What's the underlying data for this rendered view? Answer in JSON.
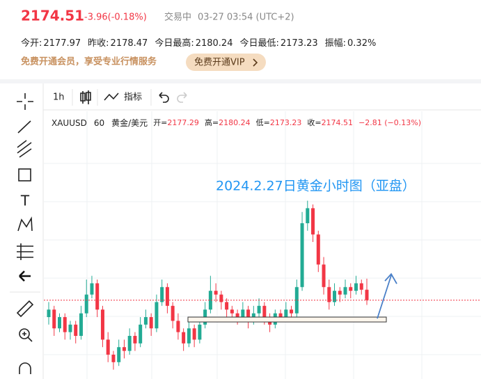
{
  "header": {
    "price": "2174.51",
    "change": "-3.96(-0.18%)",
    "status": "交易中",
    "time": "03-27 03:54 (UTC+2)"
  },
  "stats": [
    {
      "label": "今开:",
      "value": "2177.97"
    },
    {
      "label": "昨收:",
      "value": "2178.47"
    },
    {
      "label": "今日最高:",
      "value": "2180.24"
    },
    {
      "label": "今日最低:",
      "value": "2173.23"
    },
    {
      "label": "振幅:",
      "value": "0.32%"
    }
  ],
  "promo": {
    "text": "免费开通会员，享受专业行情服务",
    "button": "免费开通VIP"
  },
  "toolbar": {
    "interval": "1h",
    "indicators": "指标"
  },
  "legend": {
    "symbol": "XAUUSD",
    "interval": "60",
    "name": "黄金/美元",
    "items": [
      {
        "label": "开=",
        "value": "2177.29"
      },
      {
        "label": "高=",
        "value": "2180.24"
      },
      {
        "label": "低=",
        "value": "2173.23"
      },
      {
        "label": "收=",
        "value": "2174.51"
      }
    ],
    "change": "−2.81 (−0.13%)"
  },
  "chart_data": {
    "type": "candlestick",
    "title": "2024.2.27日黄金小时图（亚盘）",
    "up_color": "#22ab94",
    "down_color": "#f23645",
    "ylim": [
      2155,
      2215
    ],
    "ohlc": [
      [
        2170,
        2174,
        2168,
        2172
      ],
      [
        2172,
        2173,
        2165,
        2167
      ],
      [
        2167,
        2171,
        2166,
        2170
      ],
      [
        2170,
        2171,
        2164,
        2166
      ],
      [
        2166,
        2169,
        2164,
        2168
      ],
      [
        2168,
        2169,
        2163,
        2165
      ],
      [
        2165,
        2173,
        2164,
        2171
      ],
      [
        2171,
        2180,
        2170,
        2176
      ],
      [
        2176,
        2181,
        2175,
        2179
      ],
      [
        2179,
        2180,
        2170,
        2172
      ],
      [
        2172,
        2173,
        2162,
        2164
      ],
      [
        2164,
        2166,
        2158,
        2160
      ],
      [
        2160,
        2161,
        2156,
        2158
      ],
      [
        2158,
        2164,
        2157,
        2162
      ],
      [
        2162,
        2164,
        2159,
        2161
      ],
      [
        2161,
        2167,
        2160,
        2165
      ],
      [
        2165,
        2166,
        2161,
        2163
      ],
      [
        2163,
        2170,
        2162,
        2168
      ],
      [
        2168,
        2172,
        2167,
        2170
      ],
      [
        2170,
        2171,
        2165,
        2167
      ],
      [
        2167,
        2176,
        2166,
        2174
      ],
      [
        2174,
        2180,
        2173,
        2178
      ],
      [
        2178,
        2179,
        2171,
        2173
      ],
      [
        2173,
        2174,
        2167,
        2169
      ],
      [
        2169,
        2171,
        2164,
        2166
      ],
      [
        2166,
        2167,
        2161,
        2163
      ],
      [
        2163,
        2169,
        2162,
        2167
      ],
      [
        2167,
        2168,
        2162,
        2164
      ],
      [
        2164,
        2170,
        2163,
        2168
      ],
      [
        2168,
        2174,
        2167,
        2172
      ],
      [
        2172,
        2181,
        2171,
        2177
      ],
      [
        2177,
        2179,
        2174,
        2176
      ],
      [
        2176,
        2177,
        2172,
        2174
      ],
      [
        2174,
        2175,
        2170,
        2172
      ],
      [
        2172,
        2173,
        2169,
        2171
      ],
      [
        2171,
        2172,
        2168,
        2170
      ],
      [
        2170,
        2174,
        2169,
        2172
      ],
      [
        2172,
        2173,
        2167,
        2169
      ],
      [
        2169,
        2173,
        2168,
        2171
      ],
      [
        2171,
        2175,
        2170,
        2173
      ],
      [
        2173,
        2174,
        2168,
        2170
      ],
      [
        2170,
        2171,
        2166,
        2168
      ],
      [
        2168,
        2172,
        2167,
        2171
      ],
      [
        2171,
        2172,
        2169,
        2170
      ],
      [
        2170,
        2174,
        2169,
        2172
      ],
      [
        2172,
        2173,
        2169,
        2171
      ],
      [
        2171,
        2180,
        2170,
        2178
      ],
      [
        2178,
        2198,
        2177,
        2195
      ],
      [
        2195,
        2201,
        2193,
        2199
      ],
      [
        2199,
        2200,
        2190,
        2192
      ],
      [
        2192,
        2193,
        2182,
        2184
      ],
      [
        2184,
        2186,
        2176,
        2178
      ],
      [
        2178,
        2180,
        2172,
        2174
      ],
      [
        2174,
        2179,
        2173,
        2177
      ],
      [
        2177,
        2178,
        2174,
        2176
      ],
      [
        2176,
        2180,
        2175,
        2178
      ],
      [
        2178,
        2179,
        2175,
        2177
      ],
      [
        2177,
        2181,
        2176,
        2179
      ],
      [
        2179,
        2180,
        2176,
        2177.29
      ],
      [
        2177.29,
        2180.24,
        2173.23,
        2174.51
      ]
    ]
  }
}
